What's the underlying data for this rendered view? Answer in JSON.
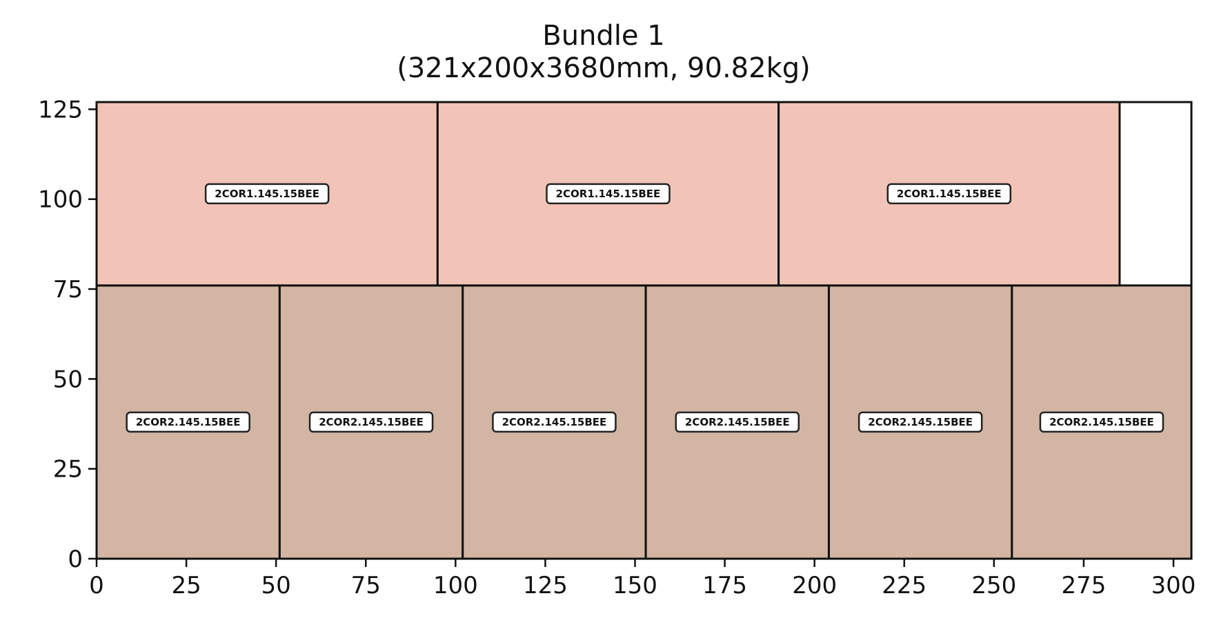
{
  "chart_data": {
    "type": "rect-packing",
    "title_lines": [
      "Bundle 1",
      "(321x200x3680mm, 90.82kg)"
    ],
    "xlabel": "",
    "ylabel": "",
    "xlim": [
      0,
      305
    ],
    "ylim": [
      0,
      127
    ],
    "x_ticks": [
      0,
      25,
      50,
      75,
      100,
      125,
      150,
      175,
      200,
      225,
      250,
      275,
      300
    ],
    "y_ticks": [
      0,
      25,
      50,
      75,
      100,
      125
    ],
    "grid": false,
    "legend": "none",
    "colors": {
      "2COR1.145.15BEE": "#f2c4b7",
      "2COR2.145.15BEE": "#d2b5a3",
      "label_bg": "#ffffff",
      "outline": "#111111"
    },
    "rects": [
      {
        "label": "2COR2.145.15BEE",
        "x": 0,
        "y": 0,
        "w": 51,
        "h": 76
      },
      {
        "label": "2COR2.145.15BEE",
        "x": 51,
        "y": 0,
        "w": 51,
        "h": 76
      },
      {
        "label": "2COR2.145.15BEE",
        "x": 102,
        "y": 0,
        "w": 51,
        "h": 76
      },
      {
        "label": "2COR2.145.15BEE",
        "x": 153,
        "y": 0,
        "w": 51,
        "h": 76
      },
      {
        "label": "2COR2.145.15BEE",
        "x": 204,
        "y": 0,
        "w": 51,
        "h": 76
      },
      {
        "label": "2COR2.145.15BEE",
        "x": 255,
        "y": 0,
        "w": 50,
        "h": 76
      },
      {
        "label": "2COR1.145.15BEE",
        "x": 0,
        "y": 76,
        "w": 95,
        "h": 51
      },
      {
        "label": "2COR1.145.15BEE",
        "x": 95,
        "y": 76,
        "w": 95,
        "h": 51
      },
      {
        "label": "2COR1.145.15BEE",
        "x": 190,
        "y": 76,
        "w": 95,
        "h": 51
      }
    ]
  }
}
